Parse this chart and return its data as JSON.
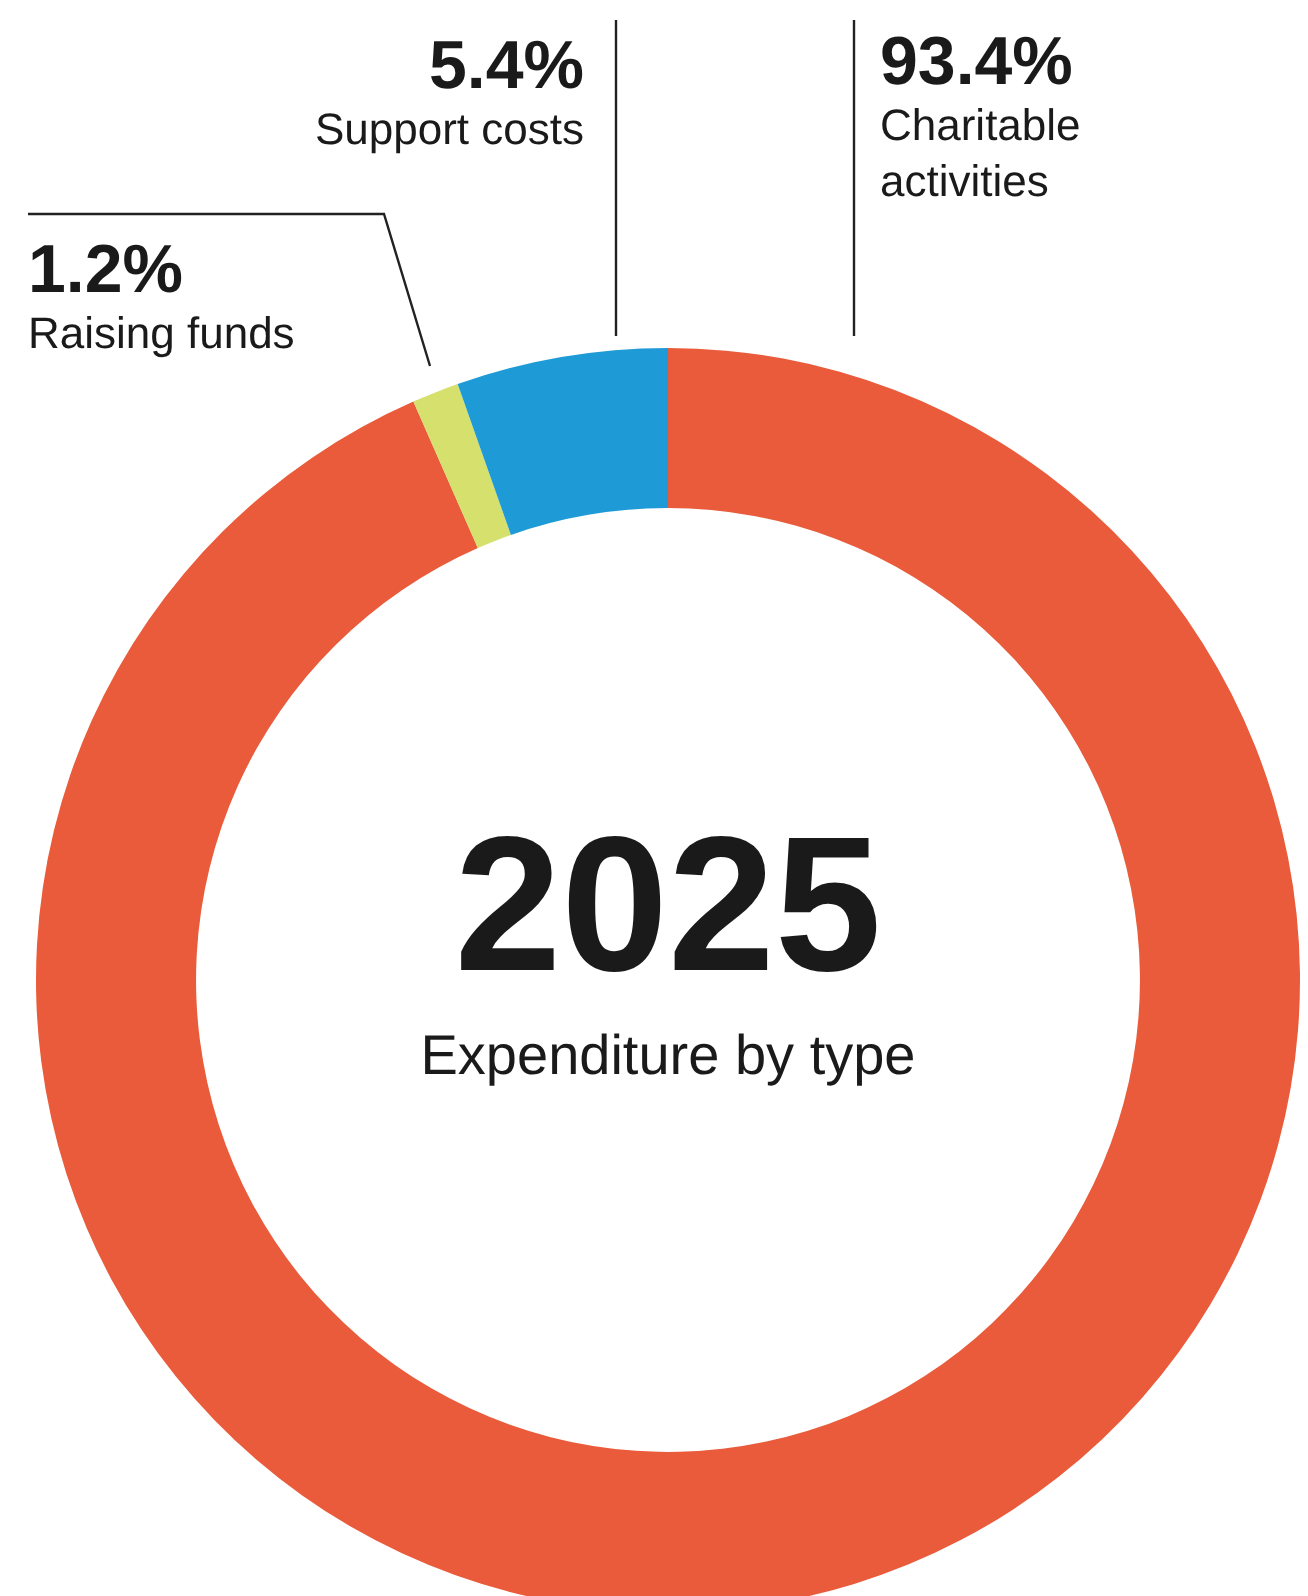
{
  "chart_data": {
    "type": "donut",
    "title": "2025",
    "subtitle": "Expenditure by type",
    "categories": [
      "Charitable activities",
      "Raising funds",
      "Support costs"
    ],
    "values": [
      93.4,
      1.2,
      5.4
    ],
    "colors": [
      "#e95b3a",
      "#d6e06c",
      "#1e9ad6"
    ],
    "value_labels": [
      "93.4%",
      "1.2%",
      "5.4%"
    ],
    "legend": false
  }
}
